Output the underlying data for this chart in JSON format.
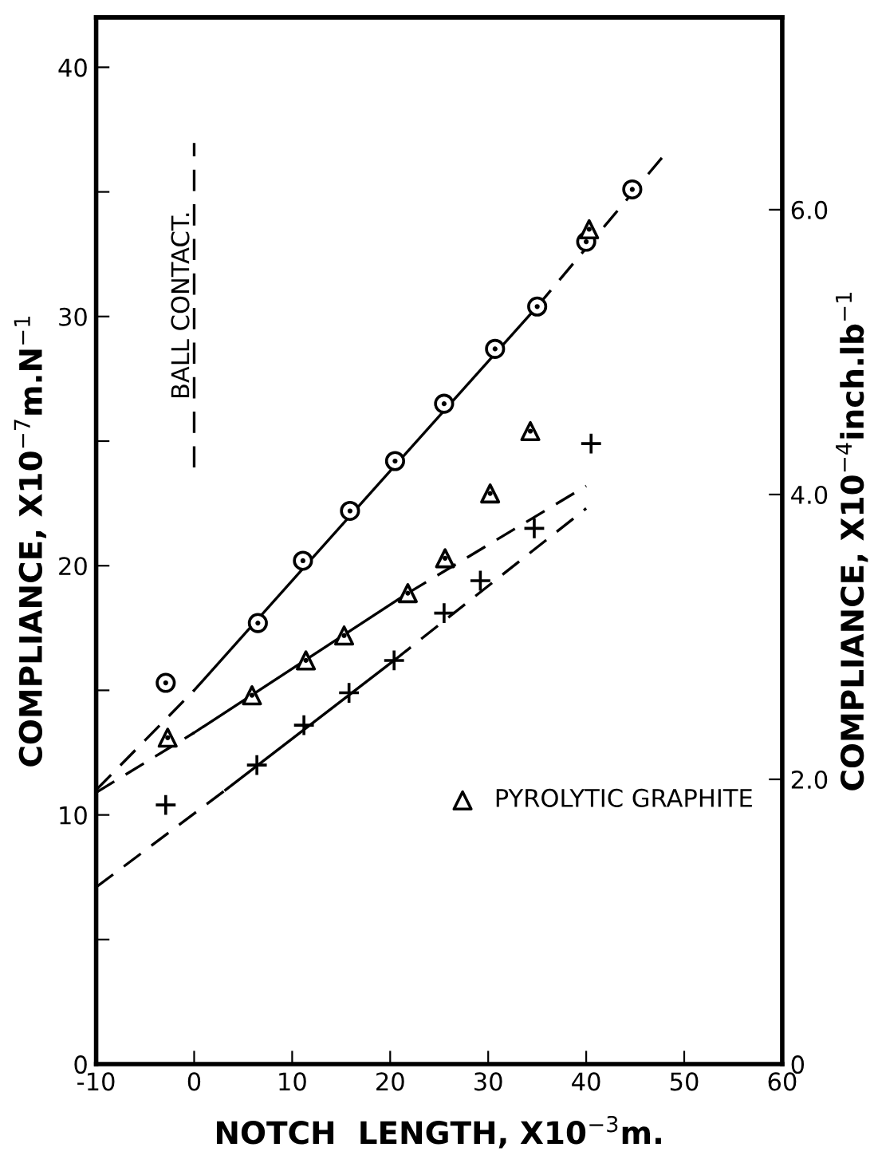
{
  "chart_data": {
    "type": "scatter",
    "xlabel": "NOTCH  LENGTH, X10$^{−3}$m.",
    "ylabel": "COMPLIANCE, X10$^{−7}$m.N$^{−1}$",
    "y2label": "COMPLIANCE, X10$^{−4}$inch.lb$^{−1}$",
    "xlim": [
      -10,
      60
    ],
    "xticks": [
      -10,
      0,
      10,
      20,
      30,
      40,
      50,
      60
    ],
    "ylim": [
      0,
      42
    ],
    "yticks": [
      0,
      {
        "value": 5,
        "label": null
      },
      10,
      {
        "value": 15,
        "label": null
      },
      20,
      {
        "value": 25,
        "label": null
      },
      30,
      {
        "value": 35,
        "label": null
      },
      40
    ],
    "y2lim": [
      0,
      7.35
    ],
    "y2ticks": [
      0,
      {
        "value": 2,
        "label": "2.0"
      },
      {
        "value": 4,
        "label": "4.0"
      },
      {
        "value": 6,
        "label": "6.0"
      }
    ],
    "grid": false,
    "legend": "bottom right",
    "ref_lines": [
      {
        "axis": "x",
        "value": 0,
        "label": "BALL CONTACT.",
        "line_style": "dashed",
        "color": "#000000"
      }
    ],
    "series": [
      {
        "color": "#000000",
        "marker": "circle",
        "x": [
          -2.9,
          6.5,
          11.1,
          15.9,
          20.5,
          25.5,
          30.7,
          35.0,
          40.0,
          44.7
        ],
        "values": [
          15.3,
          17.7,
          20.2,
          22.2,
          24.2,
          26.5,
          28.7,
          30.4,
          33.0,
          35.1
        ]
      },
      {
        "color": "#000000",
        "marker": "cross",
        "x": [
          -2.9,
          6.4,
          11.2,
          15.8,
          20.4,
          25.5,
          29.2,
          34.7,
          40.5
        ],
        "values": [
          10.4,
          12.0,
          13.6,
          14.9,
          16.2,
          18.1,
          19.4,
          21.5,
          24.9
        ]
      },
      {
        "name": "PYROLYTIC GRAPHITE",
        "color": "#000000",
        "marker": "triangle",
        "x": [
          -2.7,
          5.9,
          11.4,
          15.3,
          21.8,
          25.6,
          30.2,
          34.3,
          40.3
        ],
        "values": [
          13.1,
          14.8,
          16.2,
          17.2,
          18.9,
          20.3,
          22.9,
          25.4,
          33.5
        ]
      },
      {
        "type": "line",
        "line_style": "solid",
        "color": "#000000",
        "x": [
          0,
          35.0
        ],
        "values": [
          15.0,
          30.4
        ]
      },
      {
        "type": "line",
        "line_style": "dashed",
        "color": "#000000",
        "x": [
          -10,
          0
        ],
        "values": [
          11.0,
          15.0
        ]
      },
      {
        "type": "line",
        "line_style": "dashed",
        "color": "#000000",
        "x": [
          35.0,
          48
        ],
        "values": [
          30.4,
          36.5
        ]
      },
      {
        "type": "line",
        "line_style": "solid",
        "color": "#000000",
        "x": [
          0,
          21.8
        ],
        "values": [
          13.3,
          18.9
        ]
      },
      {
        "type": "line",
        "line_style": "dashed",
        "color": "#000000",
        "x": [
          -10,
          0
        ],
        "values": [
          10.9,
          13.3
        ]
      },
      {
        "type": "line",
        "line_style": "dashed",
        "color": "#000000",
        "x": [
          21.8,
          40
        ],
        "values": [
          18.9,
          23.2
        ]
      },
      {
        "type": "line",
        "line_style": "solid",
        "color": "#000000",
        "x": [
          3.2,
          20.4
        ],
        "values": [
          11.0,
          16.2
        ]
      },
      {
        "type": "line",
        "line_style": "dashed",
        "color": "#000000",
        "x": [
          -10,
          3.2
        ],
        "values": [
          7.1,
          11.0
        ]
      },
      {
        "type": "line",
        "line_style": "dashed",
        "color": "#000000",
        "x": [
          20.4,
          40
        ],
        "values": [
          16.2,
          22.3
        ]
      }
    ]
  }
}
